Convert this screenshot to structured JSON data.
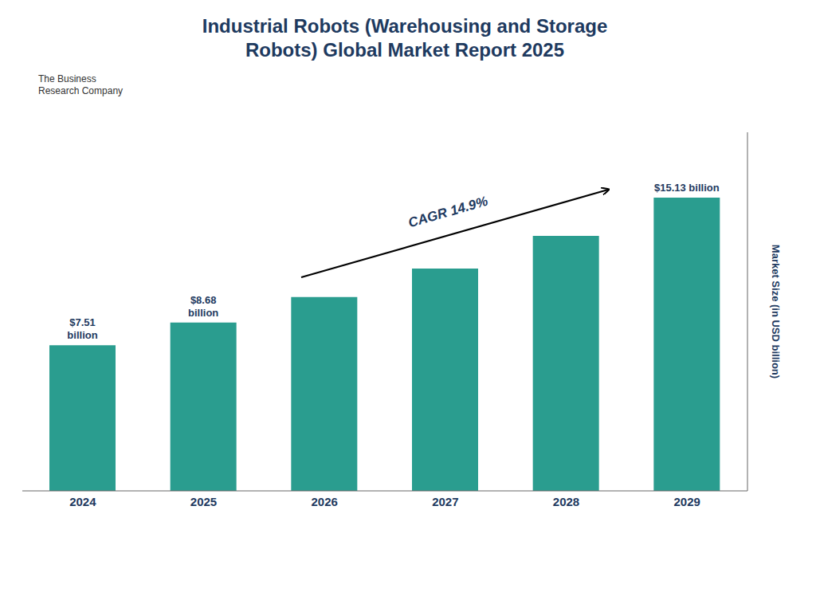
{
  "chart_data": {
    "type": "bar",
    "title": "Industrial Robots (Warehousing and Storage\nRobots) Global Market Report 2025",
    "categories": [
      "2024",
      "2025",
      "2026",
      "2027",
      "2028",
      "2029"
    ],
    "values": [
      7.51,
      8.68,
      10.0,
      11.47,
      13.16,
      15.13
    ],
    "value_labels": [
      "$7.51\nbillion",
      "$8.68\nbillion",
      null,
      null,
      null,
      "$15.13 billion"
    ],
    "color": "#2a9d8f",
    "ylabel": "Market Size (in USD billion)",
    "ylim": [
      0,
      18.5
    ],
    "grid": false,
    "tick_labels": "x",
    "annotations": [
      "CAGR 14.9%",
      "The Business\nResearch Company"
    ]
  }
}
